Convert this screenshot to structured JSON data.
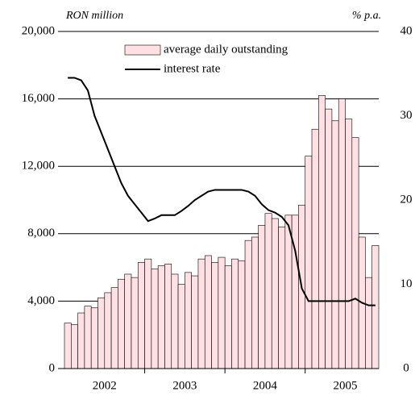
{
  "chart_data": {
    "type": "bar-line",
    "y_unit_label": "RON million",
    "y2_unit_label": "% p.a.",
    "year_labels": [
      "2002",
      "2003",
      "2004",
      "2005"
    ],
    "ylim": [
      0,
      20000
    ],
    "yticks": [
      0,
      {
        "value": 4000,
        "label": "4,000"
      },
      {
        "value": 8000,
        "label": "8,000"
      },
      {
        "value": 12000,
        "label": "12,000"
      },
      {
        "value": 16000,
        "label": "16,000"
      },
      {
        "value": 20000,
        "label": "20,000"
      }
    ],
    "y2lim": [
      0,
      40
    ],
    "y2ticks": [
      0,
      10,
      20,
      30,
      40
    ],
    "grid": true,
    "legend": "top",
    "series": [
      {
        "name": "average daily outstanding",
        "type": "bar",
        "color": "#ffe0e4",
        "values": [
          2700,
          2600,
          3300,
          3700,
          3600,
          4200,
          4500,
          4800,
          5300,
          5600,
          5400,
          6300,
          6500,
          5900,
          6100,
          6200,
          5600,
          5000,
          5700,
          5500,
          6500,
          6700,
          6300,
          6600,
          6100,
          6500,
          6400,
          7600,
          7800,
          8500,
          9200,
          8900,
          8400,
          9100,
          9100,
          9700,
          12600,
          14200,
          16200,
          15400,
          14700,
          16000,
          14800,
          13700,
          7800,
          5400,
          7300
        ]
      },
      {
        "name": "interest rate",
        "type": "line",
        "axis": "y2",
        "color": "#000000",
        "values": [
          34.5,
          34.5,
          34.2,
          33,
          30,
          28,
          26,
          24,
          22,
          20.5,
          19.5,
          18.5,
          17.5,
          17.8,
          18.2,
          18.2,
          18.2,
          18.7,
          19.3,
          20,
          20.5,
          21,
          21.2,
          21.2,
          21.2,
          21.2,
          21.2,
          21,
          20.5,
          19.5,
          18.8,
          18.5,
          18,
          17,
          14,
          9.5,
          8,
          8,
          8,
          8,
          8,
          8,
          8,
          8.3,
          7.8,
          7.5,
          7.5
        ]
      }
    ]
  }
}
